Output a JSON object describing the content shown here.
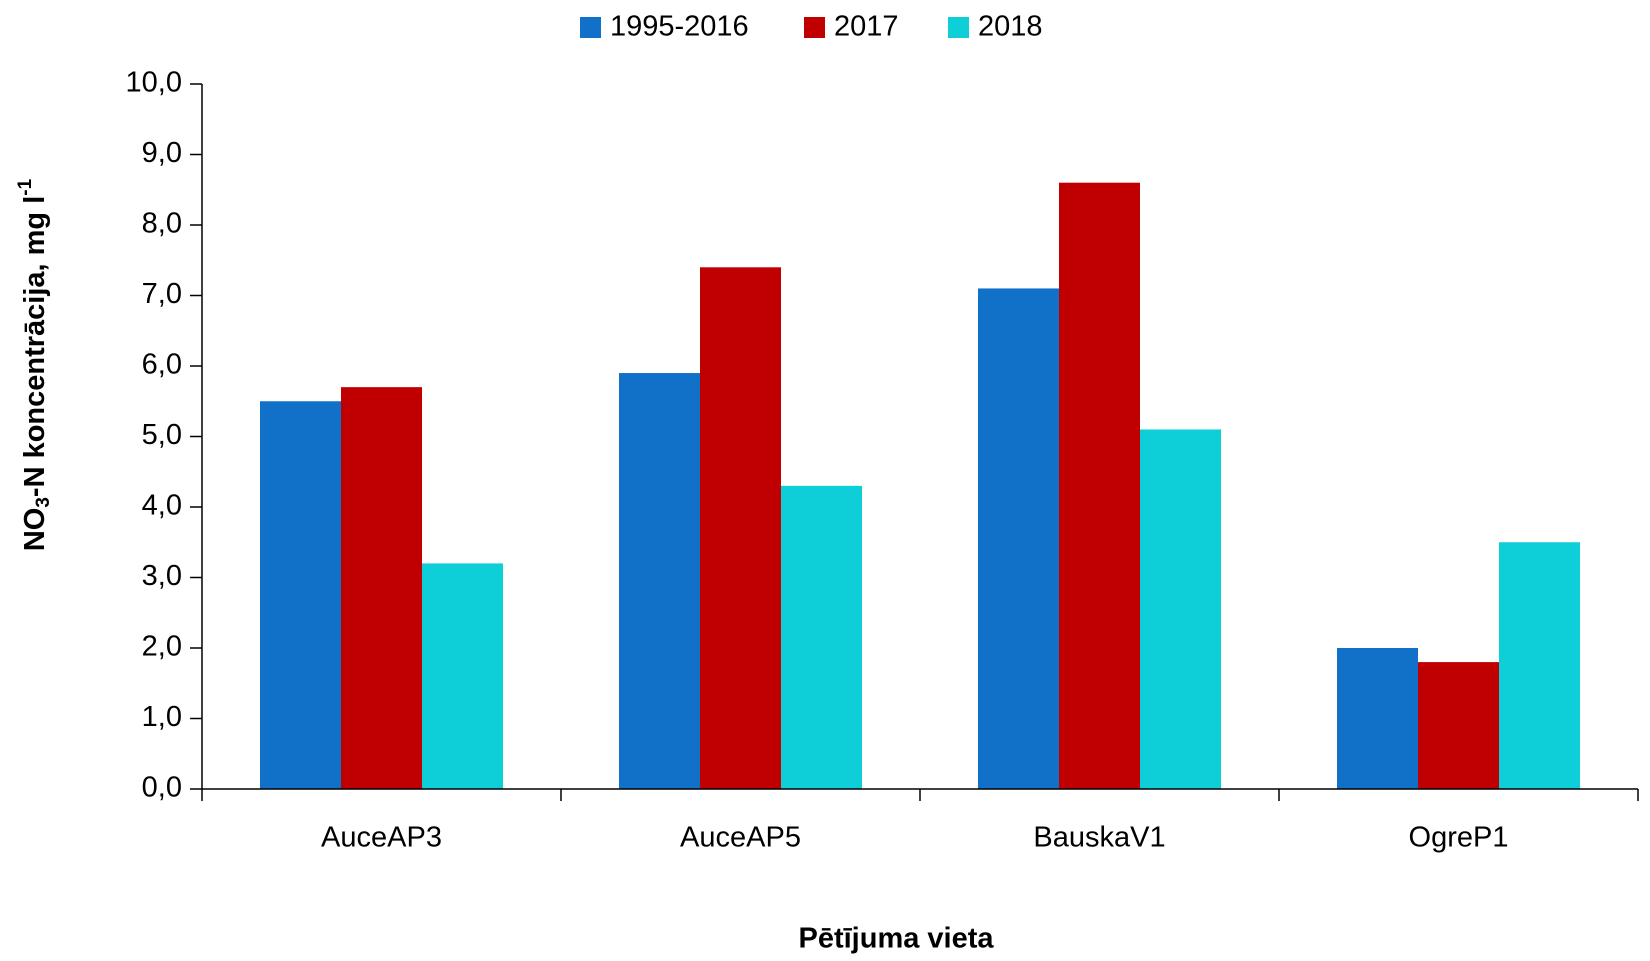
{
  "chart_data": {
    "type": "bar",
    "categories": [
      "AuceAP3",
      "AuceAP5",
      "BauskaV1",
      "OgreP1"
    ],
    "series": [
      {
        "name": "1995-2016",
        "color": "#1170c8",
        "values": [
          5.5,
          5.9,
          7.1,
          2.0
        ]
      },
      {
        "name": "2017",
        "color": "#c00000",
        "values": [
          5.7,
          7.4,
          8.6,
          1.8
        ]
      },
      {
        "name": "2018",
        "color": "#0ecfd8",
        "values": [
          3.2,
          4.3,
          5.1,
          3.5
        ]
      }
    ],
    "ylim": [
      0,
      10
    ],
    "yticks": [
      {
        "value": 0,
        "label": "0,0"
      },
      {
        "value": 1,
        "label": "1,0"
      },
      {
        "value": 2,
        "label": "2,0"
      },
      {
        "value": 3,
        "label": "3,0"
      },
      {
        "value": 4,
        "label": "4,0"
      },
      {
        "value": 5,
        "label": "5,0"
      },
      {
        "value": 6,
        "label": "6,0"
      },
      {
        "value": 7,
        "label": "7,0"
      },
      {
        "value": 8,
        "label": "8,0"
      },
      {
        "value": 9,
        "label": "9,0"
      },
      {
        "value": 10,
        "label": "10,0"
      }
    ],
    "ylabel": [
      "NO",
      "3",
      "-N koncentrācija, mg l",
      "-1"
    ],
    "xlabel": "Pētījuma vieta",
    "legend": "top",
    "grid": false
  }
}
